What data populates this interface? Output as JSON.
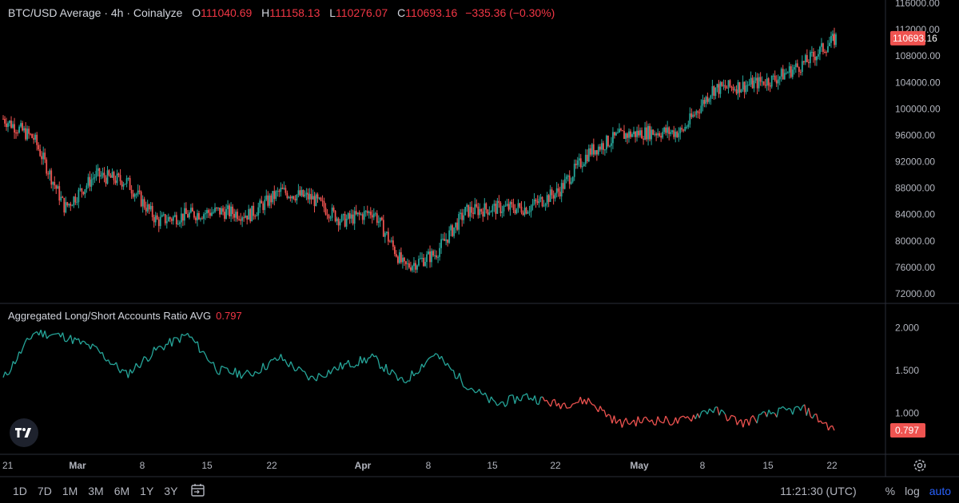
{
  "legend": {
    "title": "BTC/USD Average · 4h · Coinalyze",
    "o_label": "O",
    "o_value": "111040.69",
    "h_label": "H",
    "h_value": "111158.13",
    "l_label": "L",
    "l_value": "110276.07",
    "c_label": "C",
    "c_value": "110693.16",
    "change": "−335.36 (−0.30%)"
  },
  "indicator_legend": {
    "name": "Aggregated Long/Short Accounts Ratio AVG",
    "value": "0.797"
  },
  "bottom_bar": {
    "ranges": [
      "1D",
      "7D",
      "1M",
      "3M",
      "6M",
      "1Y",
      "3Y"
    ],
    "time": "11:21:30 (UTC)",
    "percent": "%",
    "log": "log",
    "auto": "auto"
  },
  "colors": {
    "up": "#26a69a",
    "down": "#ef5350",
    "price_tag": "#ef5350",
    "grid": "#2a2e39",
    "ratio_above_1": "#26a69a",
    "ratio_below_1": "#ef5350"
  },
  "chart_data": [
    {
      "type": "candlestick",
      "title": "BTC/USD Average · 4h · Coinalyze",
      "ylim": [
        72000,
        116000
      ],
      "y_ticks": [
        72000,
        76000,
        80000,
        84000,
        88000,
        92000,
        96000,
        100000,
        104000,
        108000,
        112000,
        116000
      ],
      "y_tick_labels": [
        "72000.00",
        "76000.00",
        "80000.00",
        "84000.00",
        "88000.00",
        "92000.00",
        "96000.00",
        "100000.00",
        "104000.00",
        "108000.00",
        "112000.00",
        "116000.00"
      ],
      "x_tick_labels": [
        "21",
        "Mar",
        "8",
        "15",
        "22",
        "Apr",
        "8",
        "15",
        "22",
        "May",
        "8",
        "15",
        "22"
      ],
      "last_price_label": "110693.16",
      "grid": false,
      "x": [
        "Feb 21",
        "Feb 25",
        "Mar 1",
        "Mar 4",
        "Mar 8",
        "Mar 11",
        "Mar 15",
        "Mar 18",
        "Mar 22",
        "Mar 25",
        "Mar 29",
        "Apr 1",
        "Apr 5",
        "Apr 7",
        "Apr 9",
        "Apr 12",
        "Apr 15",
        "Apr 19",
        "Apr 22",
        "Apr 25",
        "May 1",
        "May 5",
        "May 8",
        "May 10",
        "May 15",
        "May 19",
        "May 21",
        "May 22"
      ],
      "close": [
        98500,
        95500,
        85000,
        90000,
        89000,
        83000,
        84000,
        84500,
        84000,
        87500,
        86500,
        83000,
        84500,
        76000,
        78000,
        84500,
        85000,
        85000,
        87500,
        93500,
        96000,
        96500,
        96500,
        103000,
        103500,
        104500,
        107000,
        110693.16
      ]
    },
    {
      "type": "line",
      "name": "Aggregated Long/Short Accounts Ratio AVG",
      "ylim": [
        0.6,
        2.1
      ],
      "y_ticks": [
        1.0,
        1.5,
        2.0
      ],
      "y_tick_labels": [
        "1.000",
        "1.500",
        "2.000"
      ],
      "last_value_label": "0.797",
      "x": [
        "Feb 21",
        "Feb 24",
        "Feb 27",
        "Mar 2",
        "Mar 5",
        "Mar 8",
        "Mar 11",
        "Mar 13",
        "Mar 16",
        "Mar 20",
        "Mar 24",
        "Mar 28",
        "Apr 1",
        "Apr 4",
        "Apr 7",
        "Apr 9",
        "Apr 12",
        "Apr 15",
        "Apr 18",
        "Apr 21",
        "Apr 25",
        "May 1",
        "May 5",
        "May 8",
        "May 12",
        "May 15",
        "May 19",
        "May 22"
      ],
      "values": [
        1.4,
        1.95,
        1.9,
        1.75,
        1.45,
        1.75,
        1.92,
        1.5,
        1.45,
        1.65,
        1.4,
        1.55,
        1.65,
        1.35,
        1.7,
        1.35,
        1.1,
        1.2,
        1.1,
        1.15,
        0.88,
        0.92,
        0.9,
        1.05,
        0.88,
        1.0,
        1.05,
        0.8
      ]
    }
  ]
}
